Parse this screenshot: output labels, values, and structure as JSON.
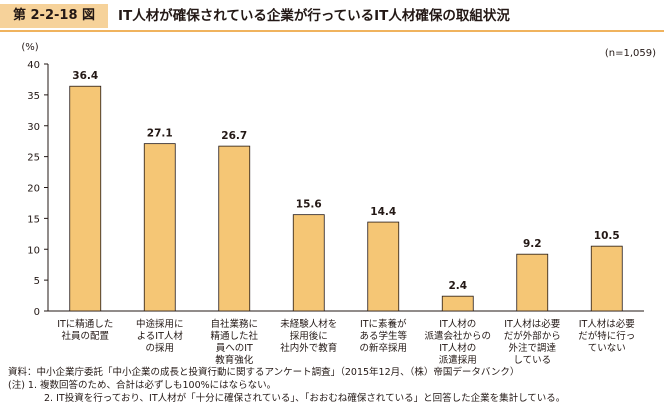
{
  "header": {
    "figure_number": "第 2-2-18 図",
    "title": "IT人材が確保されている企業が行っているIT人材確保の取組状況"
  },
  "chart_data": {
    "type": "bar",
    "ylabel": "(%)",
    "sample_note": "(n=1,059)",
    "ylim": [
      0,
      40
    ],
    "yticks": [
      0,
      5,
      10,
      15,
      20,
      25,
      30,
      35,
      40
    ],
    "categories": [
      [
        "ITに精通した",
        "社員の配置"
      ],
      [
        "中途採用に",
        "よるIT人材",
        "の採用"
      ],
      [
        "自社業務に",
        "精通した社",
        "員へのIT",
        "教育強化"
      ],
      [
        "未経験人材を",
        "採用後に",
        "社内外で教育"
      ],
      [
        "ITに素養が",
        "ある学生等",
        "の新卒採用"
      ],
      [
        "IT人材の",
        "派遣会社からの",
        "IT人材の",
        "派遣採用"
      ],
      [
        "IT人材は必要",
        "だが外部から",
        "外注で調達",
        "している"
      ],
      [
        "IT人材は必要",
        "だが特に行っ",
        "ていない"
      ]
    ],
    "values": [
      36.4,
      27.1,
      26.7,
      15.6,
      14.4,
      2.4,
      9.2,
      10.5
    ],
    "value_labels": [
      "36.4",
      "27.1",
      "26.7",
      "15.6",
      "14.4",
      "2.4",
      "9.2",
      "10.5"
    ],
    "bar_color": "#f5c675",
    "bar_stroke": "#231815",
    "axis_color": "#231815",
    "grid": false
  },
  "notes": {
    "source": "資料：中小企業庁委託「中小企業の成長と投資行動に関するアンケート調査」（2015年12月、（株）帝国データバンク）",
    "note1": "(注) 1. 複数回答のため、合計は必ずしも100%にはならない。",
    "note2": "2. IT投資を行っており、IT人材が「十分に確保されている」、「おおむね確保されている」と回答した企業を集計している。"
  }
}
